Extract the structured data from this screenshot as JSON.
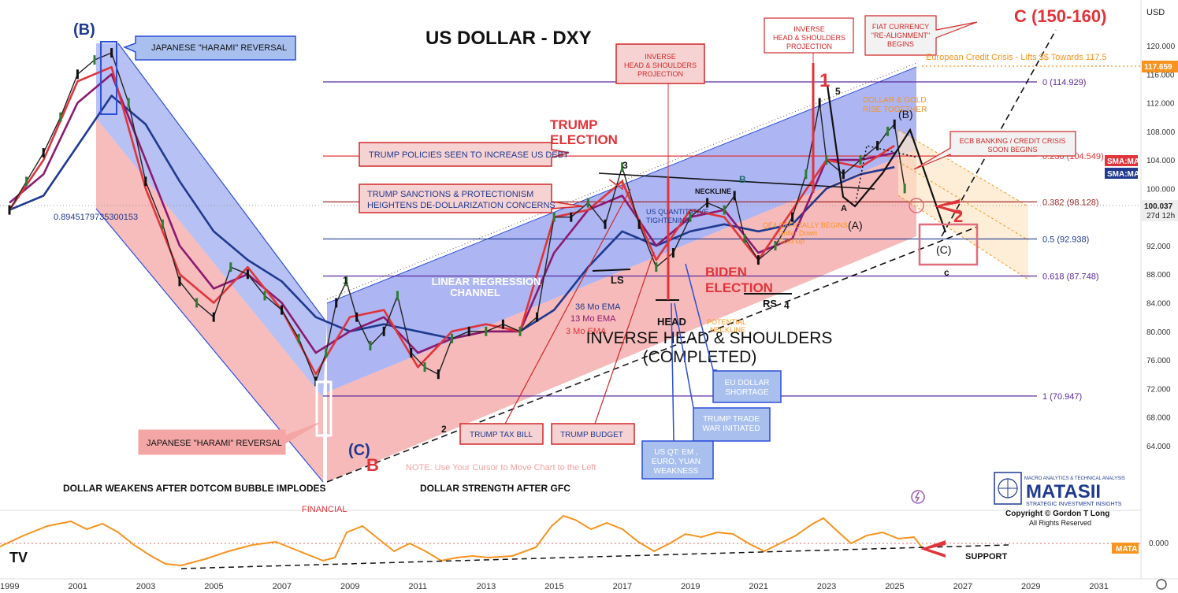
{
  "chart_data": {
    "type": "line",
    "title": "US DOLLAR - DXY",
    "currency_label": "USD",
    "ylim": [
      62,
      124
    ],
    "y_ticks": [
      "120.000",
      "116.000",
      "112.000",
      "108.000",
      "104.000",
      "100.000",
      "96.000",
      "92.000",
      "88.000",
      "84.000",
      "80.000",
      "76.000",
      "72.000",
      "68.000",
      "64.000"
    ],
    "x_ticks": [
      "1999",
      "2001",
      "2003",
      "2005",
      "2007",
      "2009",
      "2011",
      "2013",
      "2015",
      "2017",
      "2019",
      "2021",
      "2023",
      "2025",
      "2027",
      "2029",
      "2031"
    ],
    "price_badges": [
      {
        "value": "117.659",
        "color": "#f7931e"
      },
      {
        "value": "100.037",
        "sub": "27d 12h",
        "color": "#eeeeee"
      }
    ],
    "sma_badges": [
      {
        "label": "SMA:MA",
        "color": "#e0343a"
      },
      {
        "label": "SMA:MA",
        "color": "#1f3a8f"
      }
    ],
    "fib_levels": [
      {
        "label": "0 (114.929)",
        "value": 114.929,
        "color": "#5b2a9c"
      },
      {
        "label": "0.236 (104.549)",
        "value": 104.549,
        "color": "#e0343a"
      },
      {
        "label": "0.382 (98.128)",
        "value": 98.128,
        "color": "#a02a2a"
      },
      {
        "label": "0.5 (92.938)",
        "value": 92.938,
        "color": "#1f3a8f"
      },
      {
        "label": "0.618 (87.748)",
        "value": 87.748,
        "color": "#5b2a9c"
      },
      {
        "label": "1 (70.947)",
        "value": 70.947,
        "color": "#5b2a9c"
      }
    ],
    "series": [
      {
        "name": "DXY",
        "color": "#222222",
        "x": [
          1999.0,
          1999.5,
          2000.0,
          2000.5,
          2001.0,
          2001.5,
          2002.0,
          2002.5,
          2003.0,
          2003.5,
          2004.0,
          2004.5,
          2005.0,
          2005.5,
          2006.0,
          2006.5,
          2007.0,
          2007.5,
          2008.0,
          2008.3,
          2008.6,
          2008.9,
          2009.2,
          2009.6,
          2010.0,
          2010.4,
          2010.8,
          2011.2,
          2011.6,
          2012.0,
          2012.5,
          2013.0,
          2013.5,
          2014.0,
          2014.5,
          2015.0,
          2015.5,
          2016.0,
          2016.5,
          2017.0,
          2017.5,
          2018.0,
          2018.5,
          2019.0,
          2019.5,
          2020.0,
          2020.3,
          2020.6,
          2021.0,
          2021.5,
          2022.0,
          2022.4,
          2022.8,
          2023.0,
          2023.5,
          2024.0,
          2024.5,
          2024.8,
          2025.0,
          2025.3
        ],
        "y": [
          97,
          101,
          105,
          110,
          116,
          118,
          119,
          112,
          101,
          95,
          87,
          84,
          82,
          89,
          88,
          85,
          83,
          79,
          73,
          77,
          84,
          87,
          82,
          78,
          80,
          85,
          77,
          75,
          74,
          79,
          80,
          80,
          81,
          80,
          82,
          96,
          96,
          98,
          95,
          103,
          95,
          89,
          91,
          96,
          98,
          97,
          99,
          93,
          90,
          92,
          96,
          102,
          112,
          104,
          102,
          104,
          106,
          108,
          109,
          100
        ]
      },
      {
        "name": "36 Mo EMA",
        "color": "#1f3a8f",
        "x": [
          1999.0,
          2000.0,
          2001.0,
          2002.0,
          2003.0,
          2004.0,
          2005.0,
          2006.0,
          2007.0,
          2008.0,
          2009.0,
          2010.0,
          2011.0,
          2012.0,
          2013.0,
          2014.0,
          2015.0,
          2016.0,
          2017.0,
          2018.0,
          2019.0,
          2020.0,
          2021.0,
          2022.0,
          2023.0,
          2024.0,
          2025.0
        ],
        "y": [
          97,
          99,
          106,
          113,
          109,
          101,
          94,
          90,
          87,
          82,
          80,
          81,
          80,
          79,
          80,
          80,
          83,
          89,
          94,
          92,
          94,
          95,
          94,
          95,
          100,
          102,
          103
        ]
      },
      {
        "name": "13 Mo EMA",
        "color": "#8b1a6f",
        "x": [
          1999.0,
          2000.0,
          2001.0,
          2002.0,
          2003.0,
          2004.0,
          2005.0,
          2006.0,
          2007.0,
          2008.0,
          2009.0,
          2010.0,
          2011.0,
          2012.0,
          2013.0,
          2014.0,
          2015.0,
          2016.0,
          2017.0,
          2018.0,
          2019.0,
          2020.0,
          2021.0,
          2022.0,
          2023.0,
          2024.0,
          2025.0
        ],
        "y": [
          98,
          102,
          112,
          116,
          104,
          92,
          86,
          88,
          84,
          77,
          80,
          82,
          77,
          79,
          80,
          80,
          91,
          97,
          99,
          92,
          96,
          97,
          91,
          93,
          104,
          104,
          105
        ]
      },
      {
        "name": "3 Mo EMA",
        "color": "#e0343a",
        "x": [
          1999.0,
          2000.0,
          2001.0,
          2002.0,
          2003.0,
          2004.0,
          2005.0,
          2006.0,
          2007.0,
          2008.0,
          2009.0,
          2010.0,
          2011.0,
          2012.0,
          2013.0,
          2014.0,
          2015.0,
          2016.0,
          2017.0,
          2018.0,
          2019.0,
          2020.0,
          2021.0,
          2022.0,
          2023.0,
          2024.0,
          2025.0
        ],
        "y": [
          97,
          104,
          115,
          117,
          100,
          88,
          84,
          89,
          83,
          74,
          82,
          83,
          75,
          80,
          81,
          80,
          96,
          97,
          101,
          90,
          97,
          96,
          90,
          97,
          104,
          103,
          106
        ]
      }
    ],
    "oscillator": {
      "name": "MATA",
      "label": "0.000",
      "color": "#f7931e"
    }
  },
  "annotations": {
    "harami_top": "JAPANESE \"HARAMI\" REVERSAL",
    "harami_bottom": "JAPANESE \"HARAMI\" REVERSAL",
    "wave_b_top": "(B)",
    "wave_c_2008": "(C)",
    "wave_b_2008": "B",
    "level_value": "0.8945179735300153",
    "trump_election": [
      "TRUMP",
      "ELECTION"
    ],
    "trump_policies": "TRUMP POLICIES SEEN TO INCREASE US DEBT",
    "trump_sanctions": [
      "TRUMP SANCTIONS & PROTECTIONISM",
      "HEIGHTENS DE-DOLLARIZATION CONCERNS"
    ],
    "ihs_projection_1": [
      "INVERSE",
      "HEAD & SHOULDERS",
      "PROJECTION"
    ],
    "ihs_projection_2": [
      "INVERSE",
      "HEAD & SHOULDERS",
      "PROJECTION"
    ],
    "fiat_currency": [
      "FIAT CURRENCY",
      "\"RE-ALIGNMENT\"",
      "BEGINS"
    ],
    "target": "C (150-160)",
    "euro_credit": "European Credit Crisis - Lifts $$ Towards 117.5",
    "dollar_gold": [
      "DOLLAR & GOLD",
      "RISE TOGETHER"
    ],
    "ecb_banking": [
      "ECB BANKING / CREDIT CRISIS",
      "SOON BEGINS"
    ],
    "wave_1": "1",
    "wave_2": "2",
    "wave_3": "3",
    "wave_5": "5",
    "wave_1_2009": "1",
    "wave_2_2012": "2",
    "wave_4_2021": "4",
    "wave_b_label": "B",
    "wave_B_2024": "(B)",
    "wave_A_2023": "(A)",
    "wave_A_small": "A",
    "wave_C_2026": "(C)",
    "wave_c_small": "c",
    "neckline": "NECKLINE",
    "us_qt": [
      "US QUANTITATIVE",
      "TIGHTENING"
    ],
    "qe4": [
      "QE4 OFFICIALLY BEGINS",
      "Dollar Down",
      "Gold Up"
    ],
    "ls": "LS",
    "rs": "RS",
    "head": "HEAD",
    "biden_election": [
      "BIDEN",
      "ELECTION"
    ],
    "linreg": [
      "LINEAR REGRESSION",
      "CHANNEL"
    ],
    "ema_36": "36 Mo EMA",
    "ema_13": "13 Mo EMA",
    "ema_3": "3 Mo EMA",
    "potential_neckline": [
      "POTENTIAL",
      "NECKLINE"
    ],
    "ihs_completed": [
      "INVERSE HEAD & SHOULDERS",
      "(COMPLETED)"
    ],
    "eu_dollar": [
      "EU DOLLAR",
      "SHORTAGE"
    ],
    "trump_trade": [
      "TRUMP TRADE",
      "WAR INITIATED"
    ],
    "us_qt_em": [
      "US QT: EM ,",
      "EURO, YUAN",
      "WEAKNESS"
    ],
    "trump_tax": "TRUMP TAX BILL",
    "trump_budget": "TRUMP BUDGET",
    "note": "NOTE: Use Your Cursor to Move Chart to the Left",
    "dollar_weakens": "DOLLAR WEAKENS AFTER DOTCOM BUBBLE IMPLODES",
    "dollar_strength": "DOLLAR STRENGTH AFTER GFC",
    "financial": "FINANCIAL",
    "support": "SUPPORT"
  },
  "logo": {
    "tagline": "MACRO ANALYTICS & TECHNICAL ANALYSIS",
    "name": "MATASII",
    "subtitle": "STRATEGIC INVESTMENT INSIGHTS",
    "copyright": "Copyright © Gordon T Long",
    "rights": "All Rights Reserved"
  },
  "watermark": "TV"
}
